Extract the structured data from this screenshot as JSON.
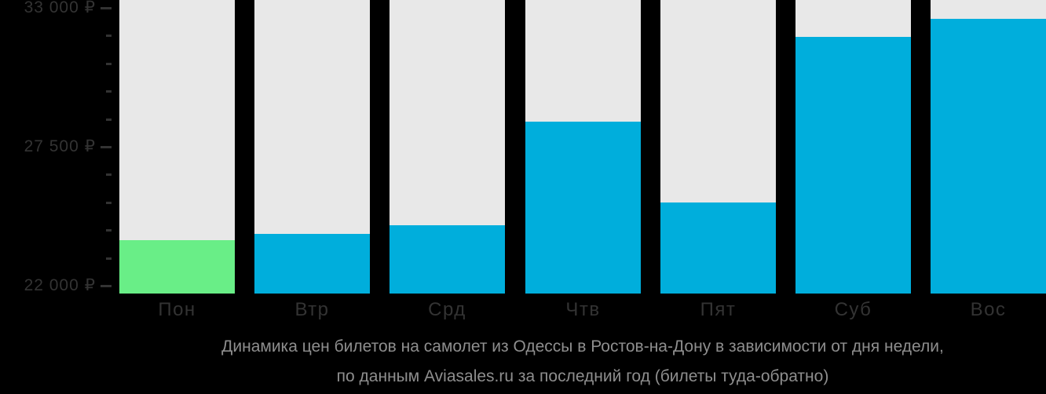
{
  "colors": {
    "background": "#000000",
    "track": "#E8E8E8",
    "bar_blue": "#00AEDC",
    "bar_green": "#69EE87",
    "axis_text": "#333333",
    "caption_text": "#8E8E8E"
  },
  "chart_data": {
    "type": "bar",
    "title": "Динамика цен билетов на самолет из Одессы в Ростов-на-Дону в зависимости от дня недели, по данным Aviasales.ru за последний год (билеты туда-обратно)",
    "categories": [
      "Пон",
      "Втр",
      "Срд",
      "Чтв",
      "Пят",
      "Суб",
      "Вос"
    ],
    "values": [
      23800,
      24050,
      24400,
      28500,
      25300,
      31850,
      32550
    ],
    "bar_colors": [
      "#69EE87",
      "#00AEDC",
      "#00AEDC",
      "#00AEDC",
      "#00AEDC",
      "#00AEDC",
      "#00AEDC"
    ],
    "cheapest_day_index": 0,
    "currency": "₽",
    "xlabel": "",
    "ylabel": "",
    "ylim": [
      21700,
      33300
    ],
    "yticks": [
      {
        "value": 33000,
        "label": "33 000 ₽"
      },
      {
        "value": 27500,
        "label": "27 500 ₽"
      },
      {
        "value": 22000,
        "label": "22 000 ₽"
      }
    ],
    "minor_yticks": [
      23100,
      24200,
      25300,
      26400,
      28600,
      29700,
      30800,
      31900
    ],
    "grid": false,
    "legend": false,
    "background_tracks_full_height": true
  },
  "caption": {
    "line1": "Динамика цен билетов на самолет из Одессы в Ростов-на-Дону в зависимости от дня недели,",
    "line2": "по данным Aviasales.ru за последний год (билеты туда-обратно)"
  }
}
